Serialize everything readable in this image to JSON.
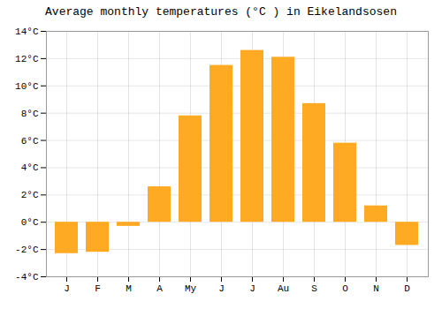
{
  "chart_data": {
    "type": "bar",
    "title": "Average monthly temperatures (°C ) in Eikelandsosen",
    "categories": [
      "J",
      "F",
      "M",
      "A",
      "My",
      "J",
      "J",
      "Au",
      "S",
      "O",
      "N",
      "D"
    ],
    "values": [
      -2.3,
      -2.2,
      -0.3,
      2.6,
      7.8,
      11.5,
      12.6,
      12.1,
      8.7,
      5.8,
      1.2,
      -1.7
    ],
    "color": "#FFAA22",
    "ylim": [
      -4,
      14
    ],
    "yticks": [
      {
        "value": -4,
        "label": "-4°C"
      },
      {
        "value": -2,
        "label": "-2°C"
      },
      {
        "value": 0,
        "label": "0°C"
      },
      {
        "value": 2,
        "label": "2°C"
      },
      {
        "value": 4,
        "label": "4°C"
      },
      {
        "value": 6,
        "label": "6°C"
      },
      {
        "value": 8,
        "label": "8°C"
      },
      {
        "value": 10,
        "label": "10°C"
      },
      {
        "value": 12,
        "label": "12°C"
      },
      {
        "value": 14,
        "label": "14°C"
      }
    ],
    "grid": true
  }
}
